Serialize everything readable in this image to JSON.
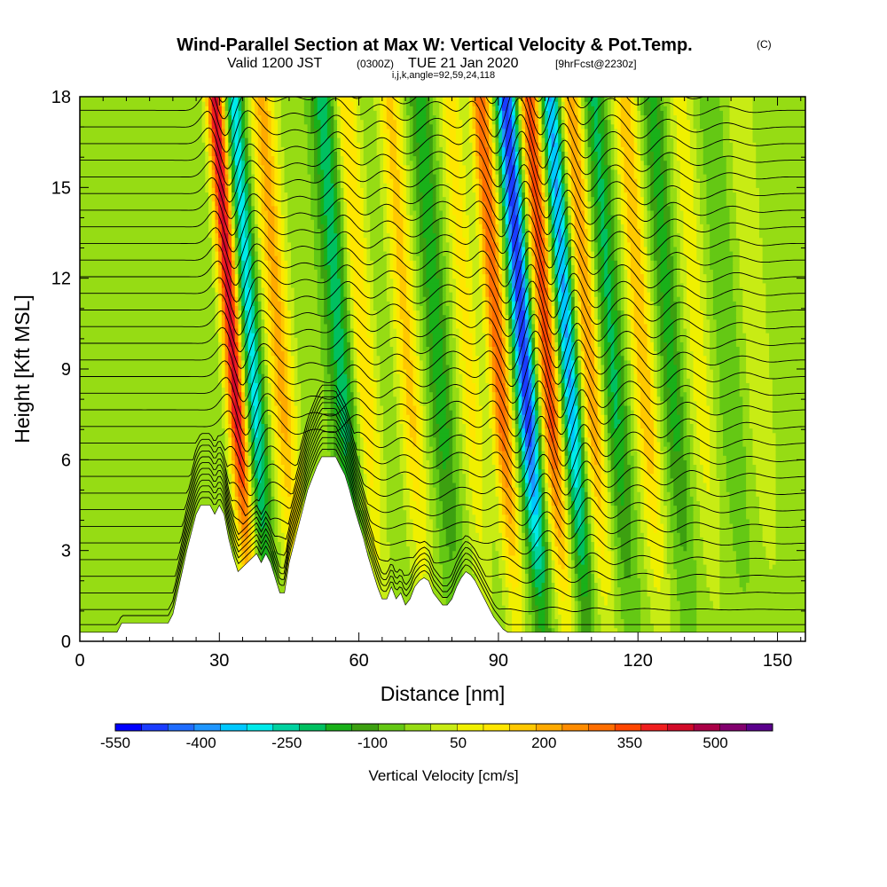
{
  "title": {
    "main": "Wind-Parallel Section at Max W: Vertical Velocity & Pot.Temp.",
    "copyright": "(C)",
    "valid_a": "Valid 1200 JST",
    "valid_b": "(0300Z)",
    "valid_c": "TUE 21 Jan 2020",
    "valid_d": "[9hrFcst@2230z]",
    "params": "i,j,k,angle=92,59,24,118"
  },
  "chart_data": {
    "type": "heatmap",
    "xlabel": "Distance [nm]",
    "ylabel": "Height [Kft MSL]",
    "xlim": [
      0,
      156
    ],
    "ylim": [
      0,
      18
    ],
    "x_ticks": [
      0,
      30,
      60,
      90,
      120,
      150
    ],
    "y_ticks": [
      0,
      3,
      6,
      9,
      12,
      15,
      18
    ],
    "grid": false,
    "colorbar": {
      "title": "Vertical Velocity [cm/s]",
      "tick_labels": [
        "-550",
        "-400",
        "-250",
        "-100",
        "50",
        "200",
        "350",
        "500"
      ],
      "tick_values": [
        -550,
        -400,
        -250,
        -100,
        50,
        200,
        350,
        500
      ],
      "range": [
        -550,
        600
      ],
      "step": 50,
      "colors": [
        "#0000ff",
        "#1a3cff",
        "#1e6cff",
        "#1e96ff",
        "#00c8ff",
        "#00eaea",
        "#00d2a0",
        "#00c060",
        "#19b019",
        "#3ca010",
        "#64c814",
        "#96dc14",
        "#c8ec14",
        "#f0f000",
        "#ffe600",
        "#ffc800",
        "#ffaa00",
        "#ff8c00",
        "#ff6e00",
        "#ff4600",
        "#f01e1e",
        "#d20a28",
        "#aa0046",
        "#82006e",
        "#5a008c"
      ]
    },
    "bands": [
      {
        "x": 34.5,
        "w": 520,
        "width": 1.9
      },
      {
        "x": 38.5,
        "w": -300,
        "width": 2.0
      },
      {
        "x": 44.5,
        "w": 250,
        "width": 2.6
      },
      {
        "x": 57.5,
        "w": -200,
        "width": 2.6
      },
      {
        "x": 62.5,
        "w": 180,
        "width": 2.4
      },
      {
        "x": 72.0,
        "w": 200,
        "width": 2.4
      },
      {
        "x": 78.5,
        "w": -150,
        "width": 2.4
      },
      {
        "x": 85.0,
        "w": 150,
        "width": 2.4
      },
      {
        "x": 91.5,
        "w": 380,
        "width": 2.1
      },
      {
        "x": 97.0,
        "w": -520,
        "width": 2.1
      },
      {
        "x": 102.0,
        "w": 420,
        "width": 2.1
      },
      {
        "x": 106.5,
        "w": -380,
        "width": 2.0
      },
      {
        "x": 111.0,
        "w": 280,
        "width": 2.2
      },
      {
        "x": 116.0,
        "w": -180,
        "width": 2.4
      },
      {
        "x": 122.5,
        "w": 230,
        "width": 2.4
      },
      {
        "x": 128.5,
        "w": -140,
        "width": 2.4
      },
      {
        "x": 134.5,
        "w": 110,
        "width": 2.6
      },
      {
        "x": 141.0,
        "w": -60,
        "width": 2.8
      },
      {
        "x": 147.0,
        "w": 70,
        "width": 3.0
      }
    ],
    "terrain": [
      [
        0,
        0.3
      ],
      [
        8,
        0.3
      ],
      [
        9,
        0.6
      ],
      [
        19,
        0.6
      ],
      [
        20,
        0.9
      ],
      [
        21,
        1.6
      ],
      [
        22,
        2.3
      ],
      [
        23,
        3.0
      ],
      [
        24,
        3.6
      ],
      [
        25,
        4.2
      ],
      [
        26,
        4.5
      ],
      [
        28,
        4.5
      ],
      [
        29,
        4.2
      ],
      [
        30,
        4.5
      ],
      [
        31,
        4.2
      ],
      [
        32,
        3.4
      ],
      [
        33,
        2.8
      ],
      [
        34,
        2.3
      ],
      [
        36,
        2.6
      ],
      [
        38,
        2.9
      ],
      [
        39,
        2.6
      ],
      [
        40,
        2.9
      ],
      [
        41,
        2.6
      ],
      [
        42,
        2.1
      ],
      [
        43,
        1.6
      ],
      [
        44,
        1.6
      ],
      [
        45,
        2.6
      ],
      [
        46,
        3.2
      ],
      [
        47,
        3.8
      ],
      [
        48,
        4.4
      ],
      [
        49,
        5.0
      ],
      [
        50,
        5.4
      ],
      [
        51,
        5.8
      ],
      [
        52,
        6.1
      ],
      [
        55,
        6.1
      ],
      [
        56,
        5.8
      ],
      [
        57,
        5.5
      ],
      [
        58,
        5.0
      ],
      [
        59,
        4.4
      ],
      [
        60,
        3.9
      ],
      [
        61,
        3.4
      ],
      [
        62,
        2.8
      ],
      [
        63,
        2.3
      ],
      [
        64,
        1.8
      ],
      [
        65,
        1.4
      ],
      [
        66,
        1.4
      ],
      [
        67,
        1.8
      ],
      [
        68,
        1.4
      ],
      [
        69,
        1.6
      ],
      [
        70,
        1.2
      ],
      [
        71,
        1.4
      ],
      [
        72,
        1.8
      ],
      [
        73,
        2.0
      ],
      [
        74,
        2.1
      ],
      [
        75,
        2.0
      ],
      [
        76,
        1.6
      ],
      [
        77,
        1.4
      ],
      [
        78,
        1.2
      ],
      [
        79,
        1.2
      ],
      [
        80,
        1.4
      ],
      [
        81,
        1.8
      ],
      [
        82,
        2.1
      ],
      [
        83,
        2.3
      ],
      [
        84,
        2.2
      ],
      [
        85,
        2.0
      ],
      [
        86,
        1.7
      ],
      [
        87,
        1.4
      ],
      [
        88,
        1.1
      ],
      [
        89,
        0.8
      ],
      [
        90,
        0.6
      ],
      [
        91,
        0.4
      ],
      [
        92,
        0.3
      ],
      [
        93,
        0.3
      ],
      [
        156,
        0.3
      ]
    ],
    "isentropes": {
      "count": 46,
      "surface_level": 0.5,
      "spacing": 0.55
    }
  }
}
